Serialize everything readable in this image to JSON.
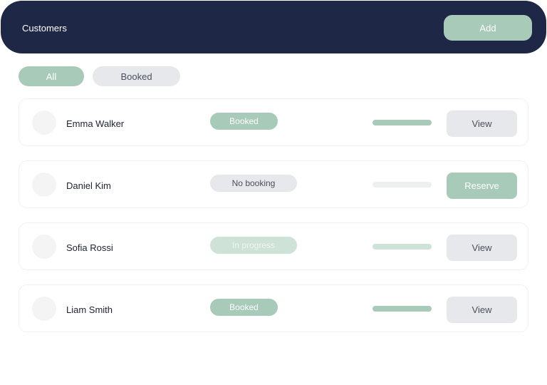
{
  "header": {
    "title": "Customers",
    "add_label": "Add"
  },
  "filters": [
    {
      "label": "All",
      "active": true
    },
    {
      "label": "Booked",
      "active": false
    }
  ],
  "colors": {
    "header_bg": "#1e2745",
    "accent": "#a8cbb9",
    "accent_light": "#cfe2d8",
    "neutral": "#e7e8ec"
  },
  "customers": [
    {
      "name": "Emma Walker",
      "status": "Booked",
      "progress_color": "#a8cbb9",
      "action": "View"
    },
    {
      "name": "Daniel Kim",
      "status": "No booking",
      "progress_color": "#eeeff1",
      "action": "Reserve"
    },
    {
      "name": "Sofia Rossi",
      "status": "In progress",
      "progress_color": "#cfe2d8",
      "action": "View"
    },
    {
      "name": "Liam Smith",
      "status": "Booked",
      "progress_color": "#a8cbb9",
      "action": "View"
    }
  ]
}
